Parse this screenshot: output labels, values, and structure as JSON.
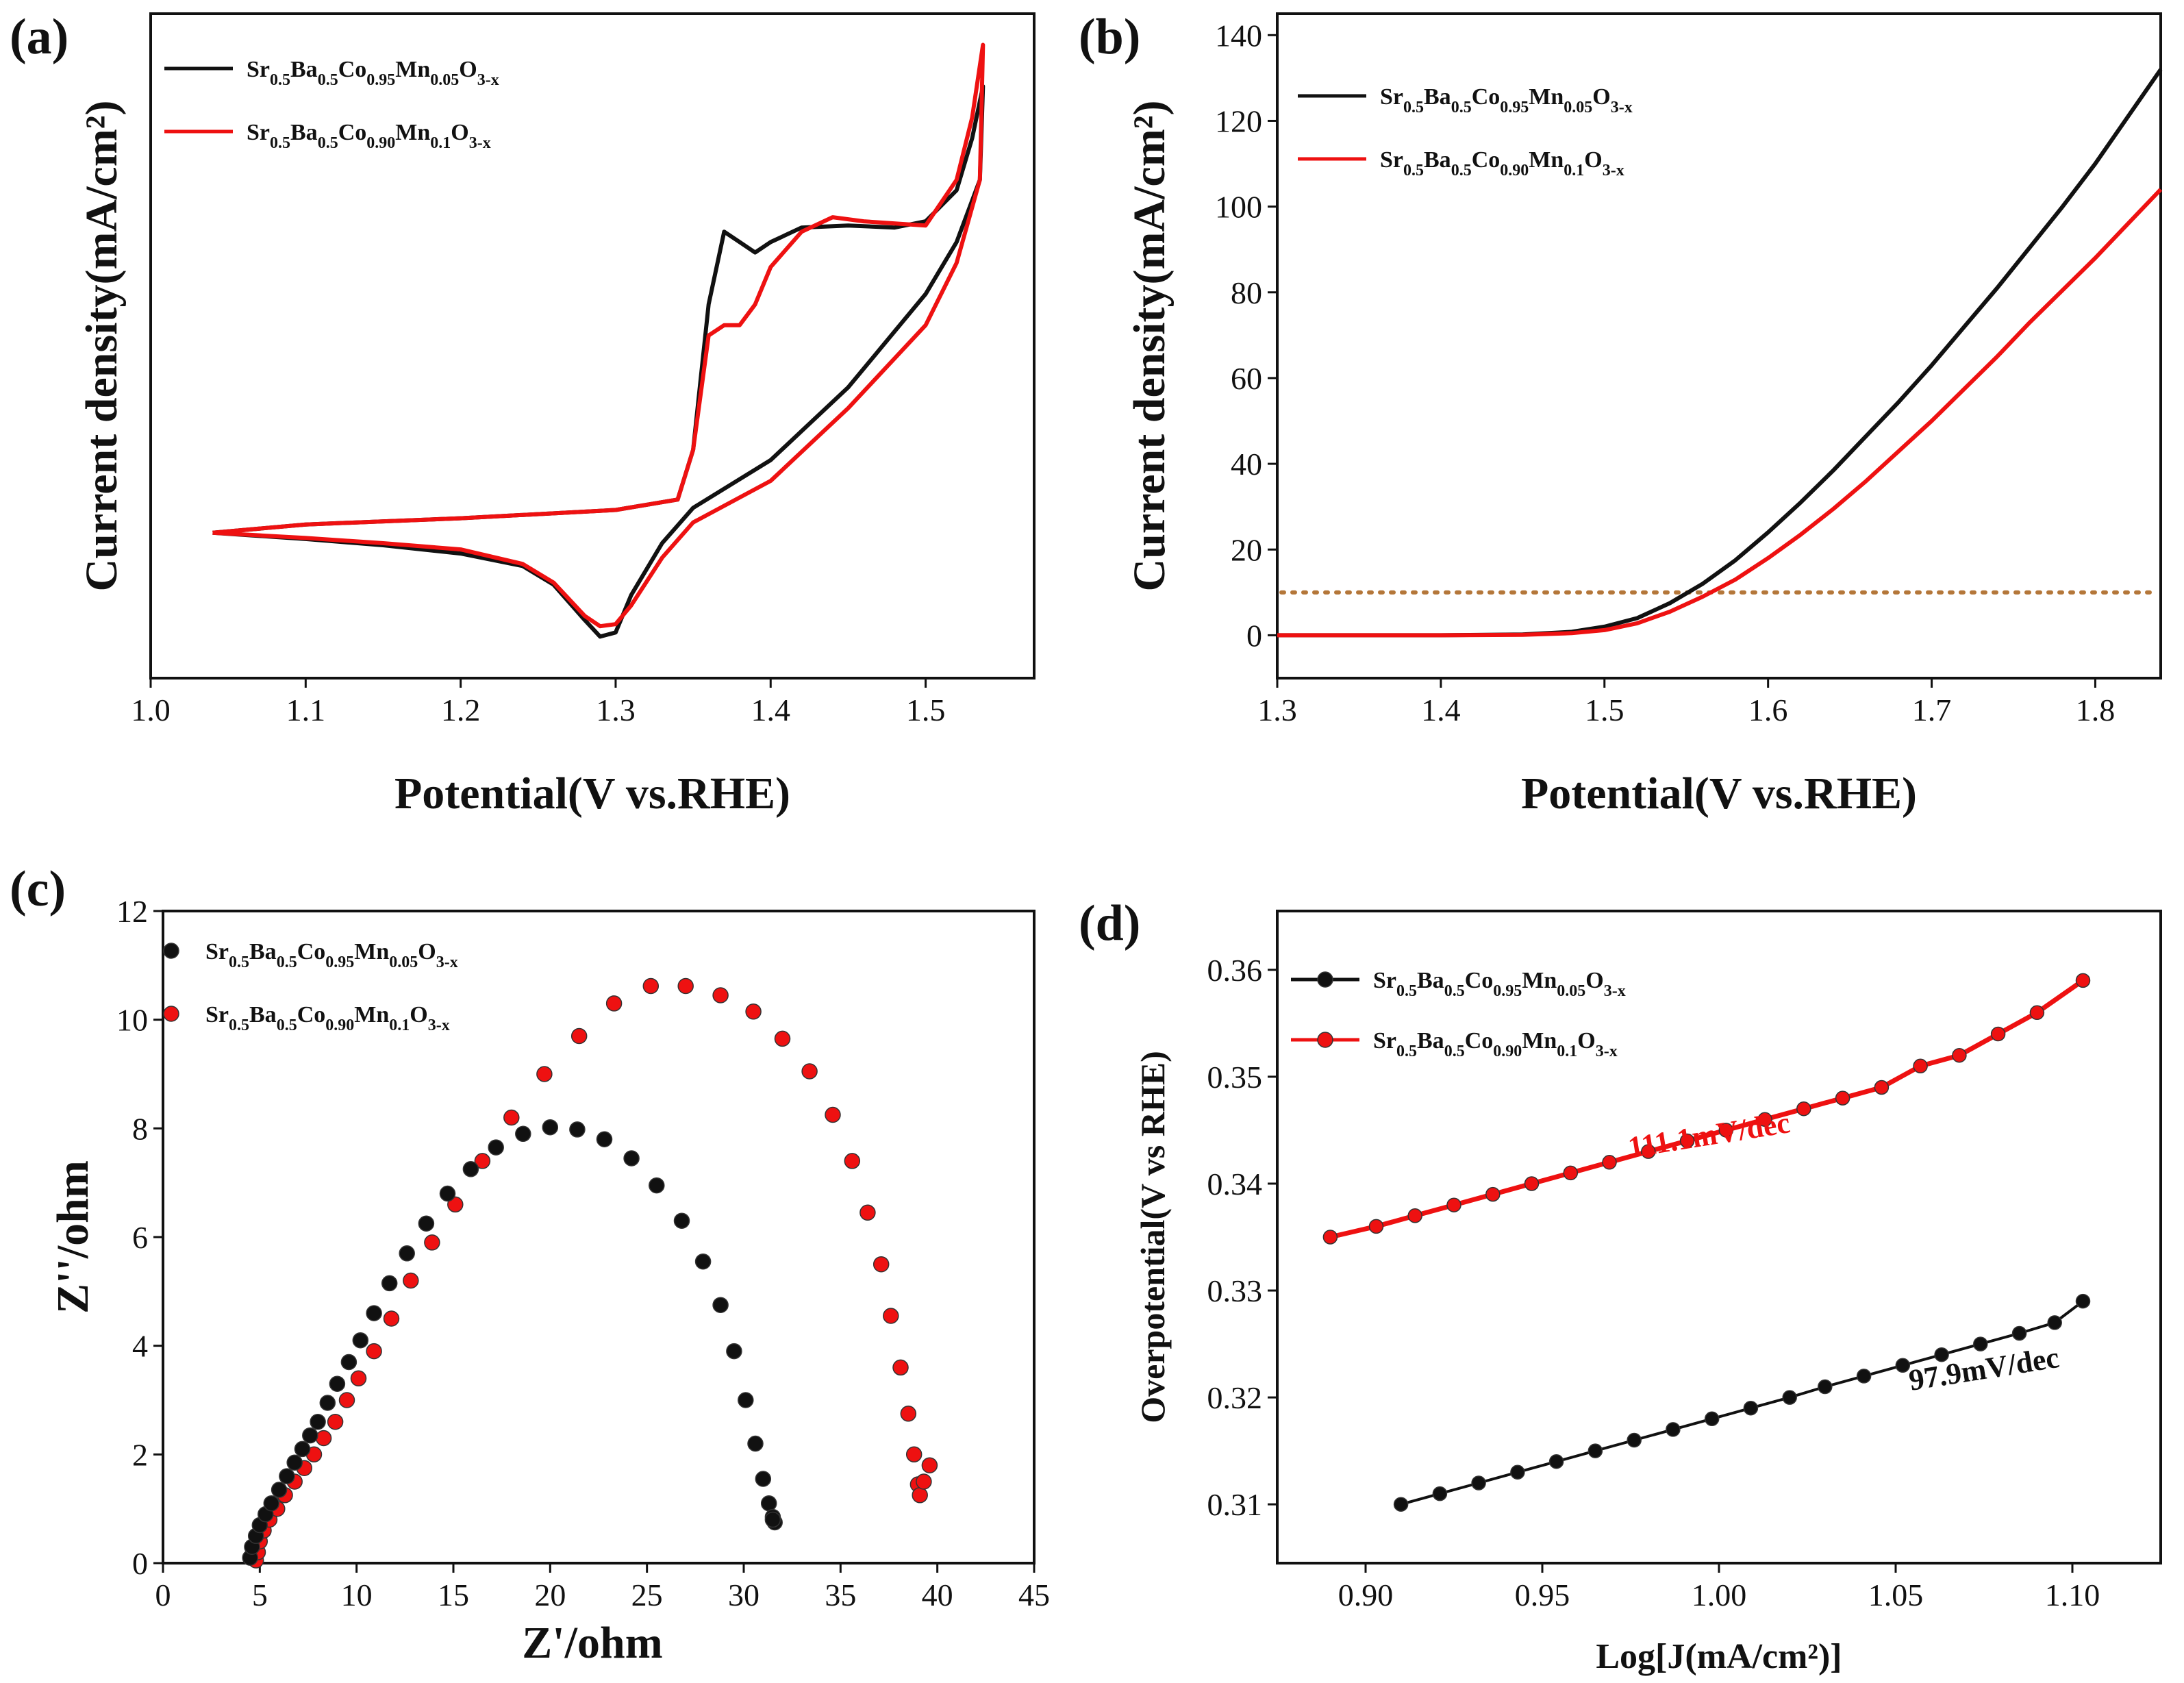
{
  "colors": {
    "black": "#111111",
    "red": "#ee1111",
    "dotted": "#b4773a"
  },
  "legend_series": [
    {
      "name": "Sr0.5Ba0.5Co0.95Mn0.05O3-x",
      "parts": [
        {
          "t": "Sr"
        },
        {
          "s": "0.5"
        },
        {
          "t": "Ba"
        },
        {
          "s": "0.5"
        },
        {
          "t": "Co"
        },
        {
          "s": "0.95"
        },
        {
          "t": "Mn"
        },
        {
          "s": "0.05"
        },
        {
          "t": "O"
        },
        {
          "s": "3-x"
        }
      ]
    },
    {
      "name": "Sr0.5Ba0.5Co0.90Mn0.1O3-x",
      "parts": [
        {
          "t": "Sr"
        },
        {
          "s": "0.5"
        },
        {
          "t": "Ba"
        },
        {
          "s": "0.5"
        },
        {
          "t": "Co"
        },
        {
          "s": "0.90"
        },
        {
          "t": "Mn"
        },
        {
          "s": "0.1"
        },
        {
          "t": "O"
        },
        {
          "s": "3-x"
        }
      ]
    }
  ],
  "chart_data": [
    {
      "panel_label": "(a)",
      "type": "line",
      "xlabel": "Potential(V vs.RHE)",
      "ylabel": "Current density(mA/cm²)",
      "xlim": [
        1.0,
        1.57
      ],
      "ylim": [
        -7,
        25
      ],
      "xticks": [
        1.0,
        1.1,
        1.2,
        1.3,
        1.4,
        1.5
      ],
      "xtick_labels": [
        "1.0",
        "1.1",
        "1.2",
        "1.3",
        "1.4",
        "1.5"
      ],
      "yticks": [],
      "ytick_labels": [],
      "legend_loc": "top-left",
      "series": [
        {
          "name": "Sr0.5Ba0.5Co0.95Mn0.05O3-x",
          "color": "black",
          "x": [
            1.04,
            1.1,
            1.2,
            1.3,
            1.34,
            1.35,
            1.36,
            1.37,
            1.38,
            1.39,
            1.4,
            1.42,
            1.45,
            1.48,
            1.5,
            1.52,
            1.53,
            1.537,
            1.535,
            1.52,
            1.5,
            1.45,
            1.4,
            1.35,
            1.33,
            1.31,
            1.3,
            1.29,
            1.28,
            1.26,
            1.24,
            1.2,
            1.15,
            1.1,
            1.04
          ],
          "y": [
            0.0,
            0.4,
            0.7,
            1.1,
            1.6,
            4.0,
            11.0,
            14.5,
            14.0,
            13.5,
            14.0,
            14.7,
            14.8,
            14.7,
            15.0,
            16.5,
            19.0,
            21.5,
            17.0,
            14.0,
            11.5,
            7.0,
            3.5,
            1.2,
            -0.5,
            -3.0,
            -4.8,
            -5.0,
            -4.2,
            -2.5,
            -1.6,
            -1.0,
            -0.6,
            -0.3,
            0.0
          ]
        },
        {
          "name": "Sr0.5Ba0.5Co0.90Mn0.1O3-x",
          "color": "red",
          "x": [
            1.04,
            1.1,
            1.2,
            1.3,
            1.34,
            1.35,
            1.36,
            1.37,
            1.38,
            1.39,
            1.4,
            1.42,
            1.44,
            1.46,
            1.5,
            1.52,
            1.53,
            1.537,
            1.535,
            1.52,
            1.5,
            1.45,
            1.4,
            1.35,
            1.33,
            1.31,
            1.3,
            1.29,
            1.28,
            1.26,
            1.24,
            1.2,
            1.15,
            1.1,
            1.04
          ],
          "y": [
            0.0,
            0.4,
            0.7,
            1.1,
            1.6,
            4.0,
            9.5,
            10.0,
            10.0,
            11.0,
            12.8,
            14.5,
            15.2,
            15.0,
            14.8,
            17.0,
            20.0,
            23.5,
            17.0,
            13.0,
            10.0,
            6.0,
            2.5,
            0.5,
            -1.2,
            -3.5,
            -4.4,
            -4.5,
            -4.0,
            -2.4,
            -1.5,
            -0.8,
            -0.5,
            -0.25,
            0.0
          ]
        }
      ]
    },
    {
      "panel_label": "(b)",
      "type": "line",
      "xlabel": "Potential(V vs.RHE)",
      "ylabel": "Current density(mA/cm²)",
      "xlim": [
        1.3,
        1.84
      ],
      "ylim": [
        -10,
        145
      ],
      "xticks": [
        1.3,
        1.4,
        1.5,
        1.6,
        1.7,
        1.8
      ],
      "xtick_labels": [
        "1.3",
        "1.4",
        "1.5",
        "1.6",
        "1.7",
        "1.8"
      ],
      "yticks": [
        0,
        20,
        40,
        60,
        80,
        100,
        120,
        140
      ],
      "ytick_labels": [
        "0",
        "20",
        "40",
        "60",
        "80",
        "100",
        "120",
        "140"
      ],
      "reference_line": {
        "y": 10,
        "style": "dotted"
      },
      "legend_loc": "top-left",
      "series": [
        {
          "name": "Sr0.5Ba0.5Co0.95Mn0.05O3-x",
          "color": "black",
          "x": [
            1.3,
            1.4,
            1.45,
            1.48,
            1.5,
            1.52,
            1.54,
            1.56,
            1.58,
            1.6,
            1.62,
            1.64,
            1.66,
            1.68,
            1.7,
            1.72,
            1.74,
            1.76,
            1.78,
            1.8,
            1.82,
            1.84
          ],
          "y": [
            0,
            0,
            0.2,
            0.8,
            2.0,
            4.0,
            7.5,
            12.0,
            17.5,
            24.0,
            31.0,
            38.5,
            46.5,
            54.5,
            63.0,
            72.0,
            81.0,
            90.5,
            100.0,
            110.0,
            121.0,
            132.0
          ]
        },
        {
          "name": "Sr0.5Ba0.5Co0.90Mn0.1O3-x",
          "color": "red",
          "x": [
            1.3,
            1.4,
            1.45,
            1.48,
            1.5,
            1.52,
            1.54,
            1.56,
            1.58,
            1.6,
            1.62,
            1.64,
            1.66,
            1.68,
            1.7,
            1.72,
            1.74,
            1.76,
            1.78,
            1.8,
            1.82,
            1.84
          ],
          "y": [
            0,
            0,
            0.1,
            0.5,
            1.2,
            2.8,
            5.5,
            9.0,
            13.0,
            18.0,
            23.5,
            29.5,
            36.0,
            43.0,
            50.0,
            57.5,
            65.0,
            73.0,
            80.5,
            88.0,
            96.0,
            104.0
          ]
        }
      ]
    },
    {
      "panel_label": "(c)",
      "type": "scatter",
      "xlabel": "Z'/ohm",
      "ylabel": "Z''/ohm",
      "xlim": [
        0,
        45
      ],
      "ylim": [
        0,
        12
      ],
      "xticks": [
        0,
        5,
        10,
        15,
        20,
        25,
        30,
        35,
        40,
        45
      ],
      "xtick_labels": [
        "0",
        "5",
        "10",
        "15",
        "20",
        "25",
        "30",
        "35",
        "40",
        "45"
      ],
      "yticks": [
        0,
        2,
        4,
        6,
        8,
        10,
        12
      ],
      "ytick_labels": [
        "0",
        "2",
        "4",
        "6",
        "8",
        "10",
        "12"
      ],
      "legend_loc": "top-left",
      "series": [
        {
          "name": "Sr0.5Ba0.5Co0.95Mn0.05O3-x",
          "color": "black",
          "x": [
            4.5,
            4.6,
            4.8,
            5.0,
            5.3,
            5.6,
            6.0,
            6.4,
            6.8,
            7.2,
            7.6,
            8.0,
            8.5,
            9.0,
            9.6,
            10.2,
            10.9,
            11.7,
            12.6,
            13.6,
            14.7,
            15.9,
            17.2,
            18.6,
            20.0,
            21.4,
            22.8,
            24.2,
            25.5,
            26.8,
            27.9,
            28.8,
            29.5,
            30.1,
            30.6,
            31.0,
            31.3,
            31.5,
            31.6,
            31.5
          ],
          "y": [
            0.1,
            0.3,
            0.5,
            0.7,
            0.9,
            1.1,
            1.35,
            1.6,
            1.85,
            2.1,
            2.35,
            2.6,
            2.95,
            3.3,
            3.7,
            4.1,
            4.6,
            5.15,
            5.7,
            6.25,
            6.8,
            7.25,
            7.65,
            7.9,
            8.02,
            7.98,
            7.8,
            7.45,
            6.95,
            6.3,
            5.55,
            4.75,
            3.9,
            3.0,
            2.2,
            1.55,
            1.1,
            0.85,
            0.75,
            0.8
          ]
        },
        {
          "name": "Sr0.5Ba0.5Co0.90Mn0.1O3-x",
          "color": "red",
          "x": [
            4.8,
            4.9,
            5.0,
            5.2,
            5.5,
            5.9,
            6.3,
            6.8,
            7.3,
            7.8,
            8.3,
            8.9,
            9.5,
            10.1,
            10.9,
            11.8,
            12.8,
            13.9,
            15.1,
            16.5,
            18.0,
            19.7,
            21.5,
            23.3,
            25.2,
            27.0,
            28.8,
            30.5,
            32.0,
            33.4,
            34.6,
            35.6,
            36.4,
            37.1,
            37.6,
            38.1,
            38.5,
            38.8,
            39.0,
            39.1,
            39.3,
            39.6
          ],
          "y": [
            0.05,
            0.2,
            0.4,
            0.6,
            0.8,
            1.0,
            1.25,
            1.5,
            1.75,
            2.0,
            2.3,
            2.6,
            3.0,
            3.4,
            3.9,
            4.5,
            5.2,
            5.9,
            6.6,
            7.4,
            8.2,
            9.0,
            9.7,
            10.3,
            10.62,
            10.62,
            10.45,
            10.15,
            9.65,
            9.05,
            8.25,
            7.4,
            6.45,
            5.5,
            4.55,
            3.6,
            2.75,
            2.0,
            1.45,
            1.25,
            1.5,
            1.8
          ]
        }
      ]
    },
    {
      "panel_label": "(d)",
      "type": "line",
      "xlabel": "Log[J(mA/cm²)]",
      "ylabel": "Overpotential(V vs RHE)",
      "xlim": [
        0.875,
        1.125
      ],
      "ylim": [
        0.3045,
        0.3655
      ],
      "xticks": [
        0.9,
        0.95,
        1.0,
        1.05,
        1.1
      ],
      "xtick_labels": [
        "0.90",
        "0.95",
        "1.00",
        "1.05",
        "1.10"
      ],
      "yticks": [
        0.31,
        0.32,
        0.33,
        0.34,
        0.35,
        0.36
      ],
      "ytick_labels": [
        "0.31",
        "0.32",
        "0.33",
        "0.34",
        "0.35",
        "0.36"
      ],
      "legend_loc": "top-left",
      "annotations": [
        {
          "text": "111.1mV/dec",
          "color": "red"
        },
        {
          "text": "97.9mV/dec",
          "color": "black"
        }
      ],
      "series": [
        {
          "name": "Sr0.5Ba0.5Co0.95Mn0.05O3-x",
          "color": "black",
          "x": [
            0.91,
            0.921,
            0.932,
            0.943,
            0.954,
            0.965,
            0.976,
            0.987,
            0.998,
            1.009,
            1.02,
            1.03,
            1.041,
            1.052,
            1.063,
            1.074,
            1.085,
            1.095,
            1.103
          ],
          "y": [
            0.31,
            0.311,
            0.312,
            0.313,
            0.314,
            0.315,
            0.316,
            0.317,
            0.318,
            0.319,
            0.32,
            0.321,
            0.322,
            0.323,
            0.324,
            0.325,
            0.326,
            0.327,
            0.329
          ]
        },
        {
          "name": "Sr0.5Ba0.5Co0.90Mn0.1O3-x",
          "color": "red",
          "x": [
            0.89,
            0.903,
            0.914,
            0.925,
            0.936,
            0.947,
            0.958,
            0.969,
            0.98,
            0.991,
            1.002,
            1.013,
            1.024,
            1.035,
            1.046,
            1.057,
            1.068,
            1.079,
            1.09,
            1.103
          ],
          "y": [
            0.335,
            0.336,
            0.337,
            0.338,
            0.339,
            0.34,
            0.341,
            0.342,
            0.343,
            0.344,
            0.345,
            0.346,
            0.347,
            0.348,
            0.349,
            0.351,
            0.352,
            0.354,
            0.356,
            0.359
          ]
        }
      ]
    }
  ]
}
